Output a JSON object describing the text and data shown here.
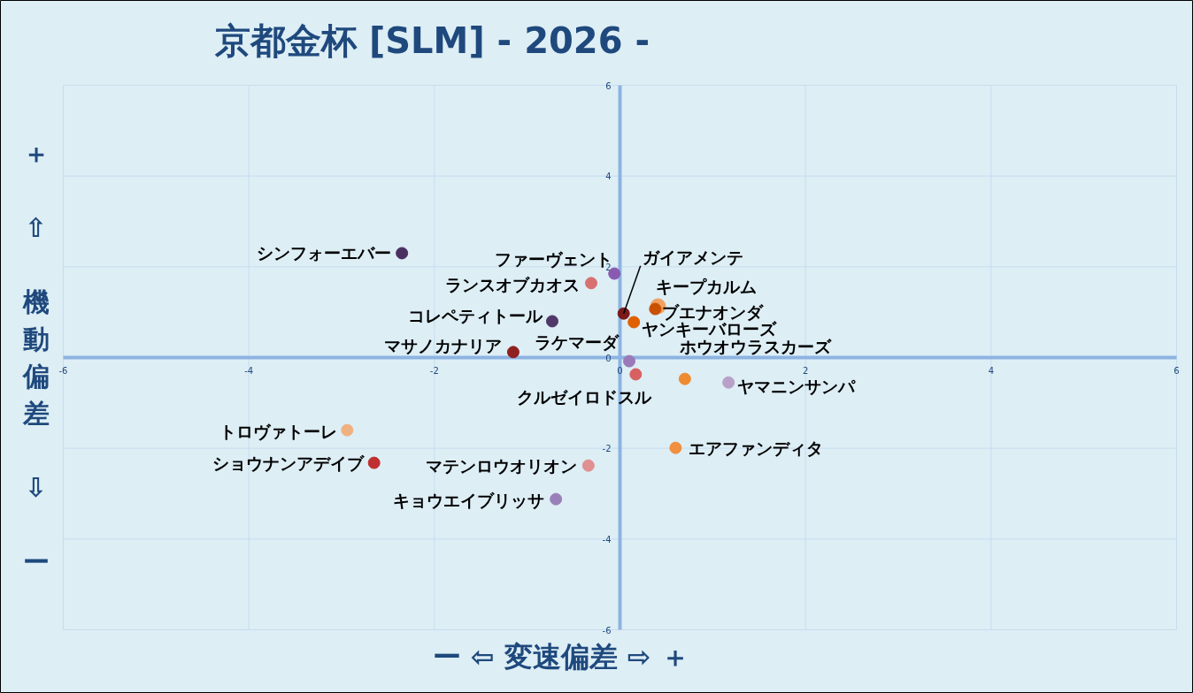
{
  "chart_data": {
    "type": "scatter",
    "title": "京都金杯 [SLM]  - 2026 -",
    "xlabel": "ー ⇦ 変速偏差 ⇨ ＋",
    "ylabel": "＋ ⇧ 機動偏差 ⇩ ー",
    "xlim": [
      -6,
      6
    ],
    "ylim": [
      -6,
      6
    ],
    "xticks": [
      -6,
      -4,
      -2,
      0,
      2,
      4,
      6
    ],
    "yticks": [
      -6,
      -4,
      -2,
      0,
      2,
      4,
      6
    ],
    "grid": true,
    "legend": false,
    "marker": "circle",
    "series": [
      {
        "name": "シンフォーエバー",
        "color": "#4a3060",
        "x": [
          -2.35
        ],
        "values": [
          2.3
        ]
      },
      {
        "name": "ファーヴェント",
        "color": "#8a5ab0",
        "x": [
          -0.06
        ],
        "values": [
          1.85
        ]
      },
      {
        "name": "ランスオブカオス",
        "color": "#d87070",
        "x": [
          -0.31
        ],
        "values": [
          1.64
        ]
      },
      {
        "name": "ガイアメンテ",
        "color": "#7a1a1a",
        "x": [
          0.04
        ],
        "values": [
          0.97
        ]
      },
      {
        "name": "キープカルム",
        "color": "#f0a060",
        "x": [
          0.41
        ],
        "values": [
          1.13
        ]
      },
      {
        "name": "ブエナオンダ",
        "color": "#c85000",
        "x": [
          0.38
        ],
        "values": [
          1.07
        ]
      },
      {
        "name": "コレペティトール",
        "color": "#503868",
        "x": [
          -0.73
        ],
        "values": [
          0.8
        ]
      },
      {
        "name": "マサノカナリア",
        "color": "#902020",
        "x": [
          -1.15
        ],
        "values": [
          0.12
        ]
      },
      {
        "name": "ラケマーダ",
        "color": "#9a7ab8",
        "x": [
          0.1
        ],
        "values": [
          -0.08
        ]
      },
      {
        "name": "ヤンキーバローズ",
        "color": "#e06000",
        "x": [
          0.15
        ],
        "values": [
          0.78
        ]
      },
      {
        "name": "クルゼイロドスル",
        "color": "#d86060",
        "x": [
          0.17
        ],
        "values": [
          -0.37
        ]
      },
      {
        "name": "ホウオウラスカーズ",
        "color": "#f08a30",
        "x": [
          0.7
        ],
        "values": [
          -0.47
        ]
      },
      {
        "name": "ヤマニンサンパ",
        "color": "#b8a0c8",
        "x": [
          1.17
        ],
        "values": [
          -0.55
        ]
      },
      {
        "name": "トロヴァトーレ",
        "color": "#f0b080",
        "x": [
          -2.94
        ],
        "values": [
          -1.6
        ]
      },
      {
        "name": "ショウナンアデイブ",
        "color": "#c03030",
        "x": [
          -2.65
        ],
        "values": [
          -2.32
        ]
      },
      {
        "name": "マテンロウオリオン",
        "color": "#e09090",
        "x": [
          -0.34
        ],
        "values": [
          -2.38
        ]
      },
      {
        "name": "キョウエイブリッサ",
        "color": "#9a80b8",
        "x": [
          -0.69
        ],
        "values": [
          -3.12
        ]
      },
      {
        "name": "エアファンディタ",
        "color": "#f09040",
        "x": [
          0.6
        ],
        "values": [
          -1.99
        ]
      }
    ]
  }
}
